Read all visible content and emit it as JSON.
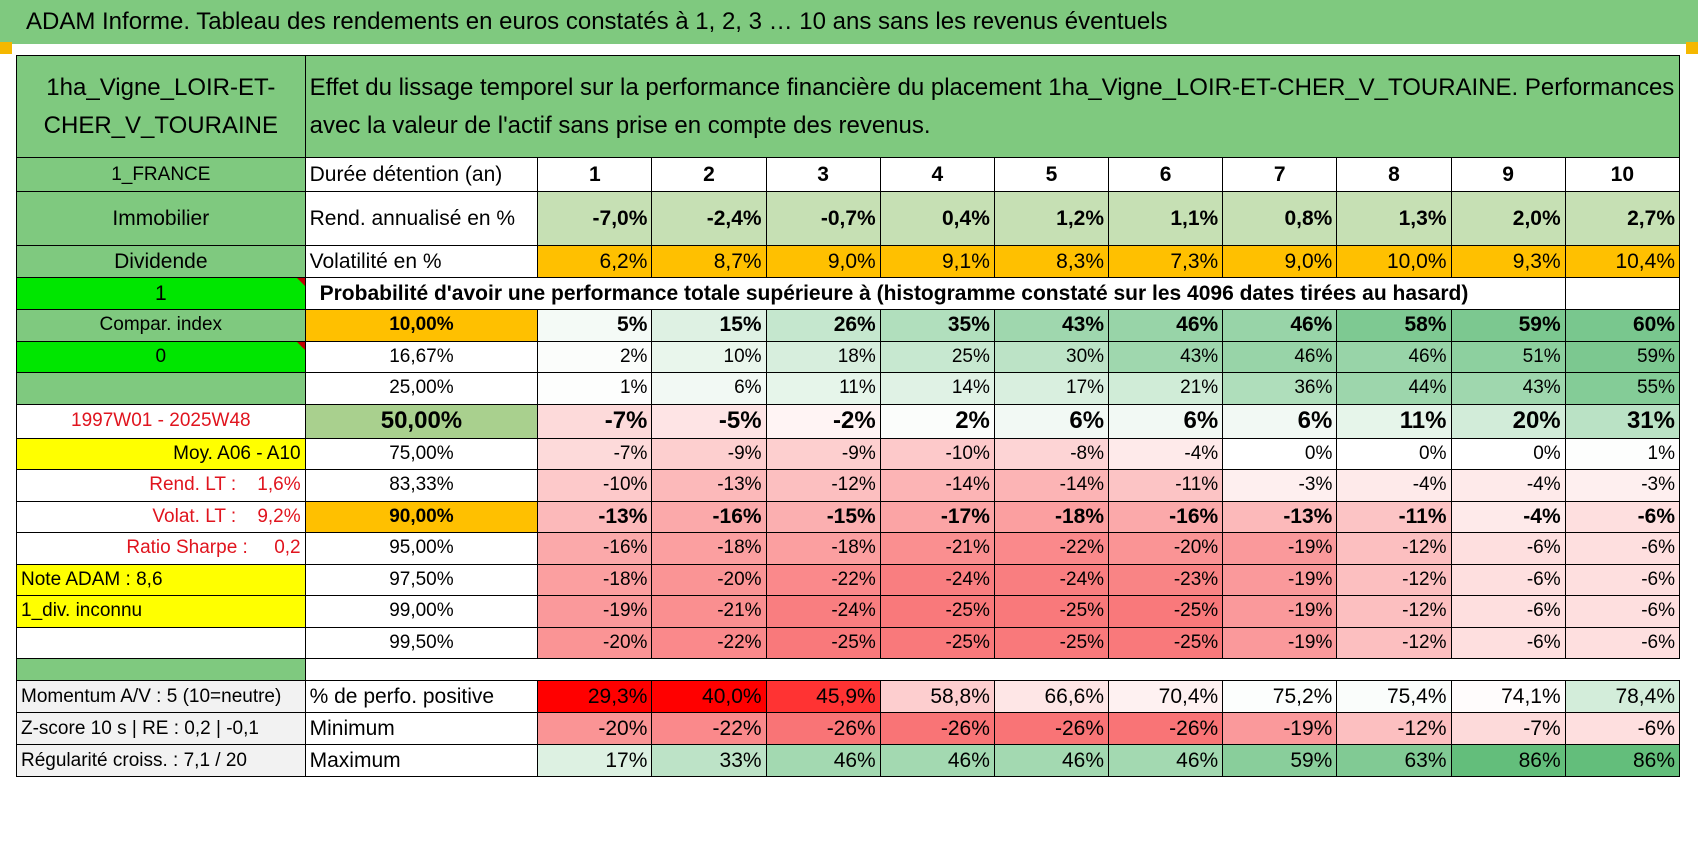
{
  "title": "ADAM Informe. Tableau des rendements en euros constatés à 1, 2, 3 … 10 ans sans les revenus éventuels",
  "asset_name": "1ha_Vigne_LOIR-ET-CHER_V_TOURAINE",
  "description": "Effet du lissage temporel sur la performance financière du placement 1ha_Vigne_LOIR-ET-CHER_V_TOURAINE. Performances avec la valeur de l'actif sans prise en compte des revenus.",
  "left": {
    "country": "1_FRANCE",
    "category": "Immobilier",
    "dividend": "Dividende",
    "dividend_val": "1",
    "compar_index": "Compar. index",
    "compar_val": "0",
    "period": "1997W01 - 2025W48",
    "moy": "Moy. A06 - A10",
    "rend_lt": "Rend. LT :    1,6%",
    "volat_lt": "Volat. LT :    9,2%",
    "sharpe": "Ratio Sharpe :     0,2",
    "note": "Note ADAM : 8,6",
    "div": "1_div. inconnu",
    "momentum": "Momentum A/V : 5 (10=neutre)",
    "zscore": "Z-score 10 s | RE : 0,2 | -0,1",
    "regularite": "Régularité croiss. : 7,1 / 20"
  },
  "labels": {
    "duree": "Durée détention (an)",
    "rend": "Rend. annualisé en %",
    "vol": "Volatilité en %",
    "proba": "Probabilité d'avoir une performance totale supérieure à (histogramme constaté sur les 4096 dates tirées au hasard)",
    "pos": "% de perfo. positive",
    "min": "Minimum",
    "max": "Maximum"
  },
  "years": [
    "1",
    "2",
    "3",
    "4",
    "5",
    "6",
    "7",
    "8",
    "9",
    "10"
  ],
  "rend": [
    "-7,0%",
    "-2,4%",
    "-0,7%",
    "0,4%",
    "1,2%",
    "1,1%",
    "0,8%",
    "1,3%",
    "2,0%",
    "2,7%"
  ],
  "vol": [
    "6,2%",
    "8,7%",
    "9,0%",
    "9,1%",
    "8,3%",
    "7,3%",
    "9,0%",
    "10,0%",
    "9,3%",
    "10,4%"
  ],
  "quantiles": [
    {
      "p": "10,00%",
      "v": [
        "5%",
        "15%",
        "26%",
        "35%",
        "43%",
        "46%",
        "46%",
        "58%",
        "59%",
        "60%"
      ]
    },
    {
      "p": "16,67%",
      "v": [
        "2%",
        "10%",
        "18%",
        "25%",
        "30%",
        "43%",
        "46%",
        "46%",
        "51%",
        "59%"
      ]
    },
    {
      "p": "25,00%",
      "v": [
        "1%",
        "6%",
        "11%",
        "14%",
        "17%",
        "21%",
        "36%",
        "44%",
        "43%",
        "55%"
      ]
    },
    {
      "p": "50,00%",
      "v": [
        "-7%",
        "-5%",
        "-2%",
        "2%",
        "6%",
        "6%",
        "6%",
        "11%",
        "20%",
        "31%"
      ]
    },
    {
      "p": "75,00%",
      "v": [
        "-7%",
        "-9%",
        "-9%",
        "-10%",
        "-8%",
        "-4%",
        "0%",
        "0%",
        "0%",
        "1%"
      ]
    },
    {
      "p": "83,33%",
      "v": [
        "-10%",
        "-13%",
        "-12%",
        "-14%",
        "-14%",
        "-11%",
        "-3%",
        "-4%",
        "-4%",
        "-3%"
      ]
    },
    {
      "p": "90,00%",
      "v": [
        "-13%",
        "-16%",
        "-15%",
        "-17%",
        "-18%",
        "-16%",
        "-13%",
        "-11%",
        "-4%",
        "-6%"
      ]
    },
    {
      "p": "95,00%",
      "v": [
        "-16%",
        "-18%",
        "-18%",
        "-21%",
        "-22%",
        "-20%",
        "-19%",
        "-12%",
        "-6%",
        "-6%"
      ]
    },
    {
      "p": "97,50%",
      "v": [
        "-18%",
        "-20%",
        "-22%",
        "-24%",
        "-24%",
        "-23%",
        "-19%",
        "-12%",
        "-6%",
        "-6%"
      ]
    },
    {
      "p": "99,00%",
      "v": [
        "-19%",
        "-21%",
        "-24%",
        "-25%",
        "-25%",
        "-25%",
        "-19%",
        "-12%",
        "-6%",
        "-6%"
      ]
    },
    {
      "p": "99,50%",
      "v": [
        "-20%",
        "-22%",
        "-25%",
        "-25%",
        "-25%",
        "-25%",
        "-19%",
        "-12%",
        "-6%",
        "-6%"
      ]
    }
  ],
  "pos": [
    "29,3%",
    "40,0%",
    "45,9%",
    "58,8%",
    "66,6%",
    "70,4%",
    "75,2%",
    "75,4%",
    "74,1%",
    "78,4%"
  ],
  "min": [
    "-20%",
    "-22%",
    "-26%",
    "-26%",
    "-26%",
    "-26%",
    "-19%",
    "-12%",
    "-7%",
    "-6%"
  ],
  "max": [
    "17%",
    "33%",
    "46%",
    "46%",
    "46%",
    "46%",
    "59%",
    "63%",
    "86%",
    "86%"
  ],
  "colors": {
    "header_green": "#7fc97f",
    "bright_green": "#00e600",
    "yellow": "#ffff00",
    "orange": "#ffc000",
    "period_red": "#e0141e",
    "quantile_50_bg": "#a9d08e",
    "rend_bg": "#c6e0b4"
  }
}
